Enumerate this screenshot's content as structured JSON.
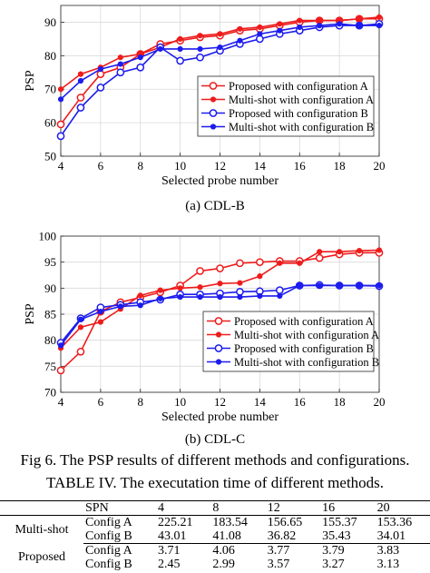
{
  "charts": [
    {
      "caption": "(a)  CDL-B",
      "chart_data": {
        "type": "line",
        "xlabel": "Selected probe number",
        "ylabel": "PSP",
        "xlim": [
          4,
          20
        ],
        "ylim": [
          50,
          95
        ],
        "xticks": [
          4,
          6,
          8,
          10,
          12,
          14,
          16,
          18,
          20
        ],
        "yticks": [
          50,
          60,
          70,
          80,
          90
        ],
        "grid": true,
        "legend_position": "bottom-right",
        "x": [
          4,
          5,
          6,
          7,
          8,
          9,
          10,
          11,
          12,
          13,
          14,
          15,
          16,
          17,
          18,
          19,
          20
        ],
        "series": [
          {
            "name": "Proposed with configuration A",
            "color": "#ee1c1c",
            "marker": "circle",
            "values": [
              59.5,
              67.5,
              74.5,
              76.5,
              80.5,
              83.5,
              84.5,
              85.5,
              86.0,
              87.5,
              88.0,
              89.0,
              90.0,
              90.5,
              90.5,
              91.0,
              91.0
            ]
          },
          {
            "name": "Multi-shot with configuration A",
            "color": "#ee1c1c",
            "marker": "dot",
            "values": [
              70.0,
              74.5,
              76.5,
              79.5,
              80.5,
              82.5,
              85.0,
              86.0,
              86.5,
              88.0,
              88.5,
              89.5,
              90.5,
              90.5,
              90.5,
              91.0,
              91.5
            ]
          },
          {
            "name": "Proposed with configuration B",
            "color": "#1c1cee",
            "marker": "circle",
            "values": [
              56.0,
              64.5,
              70.5,
              75.0,
              76.5,
              82.5,
              78.5,
              79.5,
              81.5,
              83.5,
              85.0,
              86.5,
              87.5,
              88.5,
              89.0,
              89.0,
              89.5
            ]
          },
          {
            "name": "Multi-shot with configuration B",
            "color": "#1c1cee",
            "marker": "dot",
            "values": [
              67.0,
              72.5,
              76.0,
              77.5,
              79.5,
              82.0,
              82.0,
              82.0,
              82.5,
              84.5,
              86.5,
              87.5,
              88.5,
              89.0,
              89.5,
              89.0,
              89.0
            ]
          }
        ]
      }
    },
    {
      "caption": "(b)  CDL-C",
      "chart_data": {
        "type": "line",
        "xlabel": "Selected probe number",
        "ylabel": "PSP",
        "xlim": [
          4,
          20
        ],
        "ylim": [
          70,
          100
        ],
        "xticks": [
          4,
          6,
          8,
          10,
          12,
          14,
          16,
          18,
          20
        ],
        "yticks": [
          70,
          75,
          80,
          85,
          90,
          95,
          100
        ],
        "grid": true,
        "legend_position": "bottom-right",
        "x": [
          4,
          5,
          6,
          7,
          8,
          9,
          10,
          11,
          12,
          13,
          14,
          15,
          16,
          17,
          18,
          19,
          20
        ],
        "series": [
          {
            "name": "Proposed with configuration A",
            "color": "#ee1c1c",
            "marker": "circle",
            "values": [
              74.2,
              77.8,
              85.5,
              87.3,
              88.2,
              89.2,
              90.5,
              93.3,
              93.8,
              94.8,
              95.0,
              95.2,
              95.2,
              95.8,
              96.5,
              96.8,
              96.8
            ]
          },
          {
            "name": "Multi-shot with configuration A",
            "color": "#ee1c1c",
            "marker": "dot",
            "values": [
              78.5,
              82.5,
              83.5,
              86.0,
              88.6,
              89.6,
              90.0,
              90.2,
              90.9,
              91.0,
              92.3,
              94.8,
              94.8,
              97.0,
              97.0,
              97.2,
              97.3
            ]
          },
          {
            "name": "Proposed with configuration B",
            "color": "#1c1cee",
            "marker": "circle",
            "values": [
              79.5,
              84.2,
              86.3,
              86.8,
              87.3,
              87.8,
              88.8,
              88.8,
              89.0,
              89.3,
              89.4,
              89.6,
              90.5,
              90.6,
              90.5,
              90.5,
              90.4
            ]
          },
          {
            "name": "Multi-shot with configuration B",
            "color": "#1c1cee",
            "marker": "dot",
            "values": [
              79.0,
              84.0,
              85.5,
              86.5,
              86.7,
              88.0,
              88.3,
              88.3,
              88.3,
              88.3,
              88.5,
              88.5,
              90.5,
              90.5,
              90.5,
              90.5,
              90.5
            ]
          }
        ]
      }
    }
  ],
  "figure_caption": "Fig 6. The PSP results of different methods and configurations.",
  "table_caption": "TABLE IV. The executation time of different methods.",
  "table": {
    "header": [
      "",
      "SPN",
      "4",
      "8",
      "12",
      "16",
      "20"
    ],
    "groups": [
      {
        "method": "Multi-shot",
        "rows": [
          {
            "config": "Config A",
            "values": [
              "225.21",
              "183.54",
              "156.65",
              "155.37",
              "153.36"
            ]
          },
          {
            "config": "Config B",
            "values": [
              "43.01",
              "41.08",
              "36.82",
              "35.43",
              "34.01"
            ]
          }
        ]
      },
      {
        "method": "Proposed",
        "rows": [
          {
            "config": "Config A",
            "values": [
              "3.71",
              "4.06",
              "3.77",
              "3.79",
              "3.83"
            ]
          },
          {
            "config": "Config B",
            "values": [
              "2.45",
              "2.99",
              "3.57",
              "3.27",
              "3.13"
            ]
          }
        ]
      }
    ]
  }
}
